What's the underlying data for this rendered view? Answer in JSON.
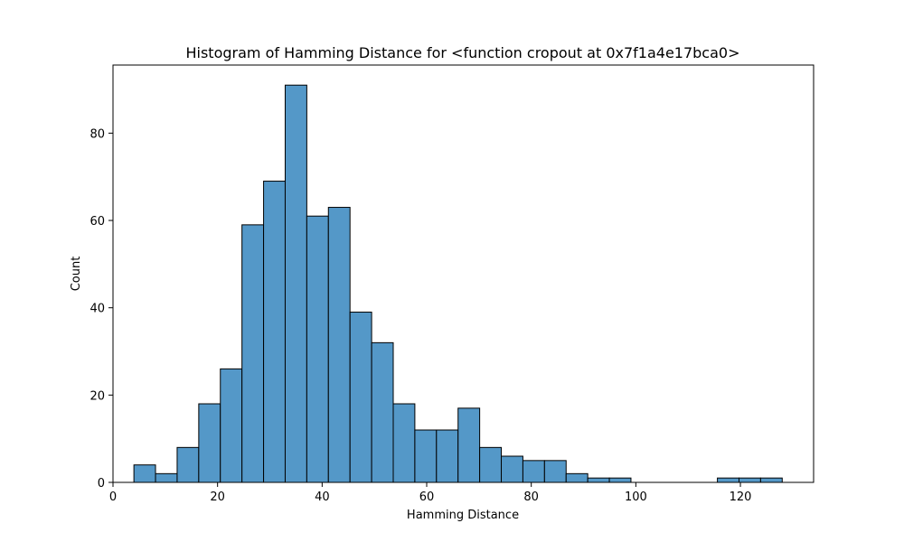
{
  "chart_data": {
    "type": "bar",
    "title": "Histogram of Hamming Distance for <function cropout at 0x7f1a4e17bca0>",
    "xlabel": "Hamming Distance",
    "ylabel": "Count",
    "xlim": [
      0,
      134
    ],
    "ylim": [
      0,
      95.6
    ],
    "xticks": [
      0,
      20,
      40,
      60,
      80,
      100,
      120
    ],
    "yticks": [
      0,
      20,
      40,
      60,
      80
    ],
    "grid": false,
    "bin_width": 4.133,
    "bins": [
      {
        "x0": 4.0,
        "x1": 8.133,
        "count": 4
      },
      {
        "x0": 8.133,
        "x1": 12.267,
        "count": 2
      },
      {
        "x0": 12.267,
        "x1": 16.4,
        "count": 8
      },
      {
        "x0": 16.4,
        "x1": 20.533,
        "count": 18
      },
      {
        "x0": 20.533,
        "x1": 24.667,
        "count": 26
      },
      {
        "x0": 24.667,
        "x1": 28.8,
        "count": 59
      },
      {
        "x0": 28.8,
        "x1": 32.933,
        "count": 69
      },
      {
        "x0": 32.933,
        "x1": 37.067,
        "count": 91
      },
      {
        "x0": 37.067,
        "x1": 41.2,
        "count": 61
      },
      {
        "x0": 41.2,
        "x1": 45.333,
        "count": 63
      },
      {
        "x0": 45.333,
        "x1": 49.467,
        "count": 39
      },
      {
        "x0": 49.467,
        "x1": 53.6,
        "count": 32
      },
      {
        "x0": 53.6,
        "x1": 57.733,
        "count": 18
      },
      {
        "x0": 57.733,
        "x1": 61.867,
        "count": 12
      },
      {
        "x0": 61.867,
        "x1": 66.0,
        "count": 12
      },
      {
        "x0": 66.0,
        "x1": 70.133,
        "count": 17
      },
      {
        "x0": 70.133,
        "x1": 74.267,
        "count": 8
      },
      {
        "x0": 74.267,
        "x1": 78.4,
        "count": 6
      },
      {
        "x0": 78.4,
        "x1": 82.533,
        "count": 5
      },
      {
        "x0": 82.533,
        "x1": 86.667,
        "count": 5
      },
      {
        "x0": 86.667,
        "x1": 90.8,
        "count": 2
      },
      {
        "x0": 90.8,
        "x1": 94.933,
        "count": 1
      },
      {
        "x0": 94.933,
        "x1": 99.067,
        "count": 1
      },
      {
        "x0": 99.067,
        "x1": 103.2,
        "count": 0
      },
      {
        "x0": 103.2,
        "x1": 107.333,
        "count": 0
      },
      {
        "x0": 107.333,
        "x1": 111.467,
        "count": 0
      },
      {
        "x0": 111.467,
        "x1": 115.6,
        "count": 0
      },
      {
        "x0": 115.6,
        "x1": 119.733,
        "count": 1
      },
      {
        "x0": 119.733,
        "x1": 123.867,
        "count": 1
      },
      {
        "x0": 123.867,
        "x1": 128.0,
        "count": 1
      }
    ],
    "colors": {
      "bar_fill": "#5498c8",
      "bar_edge": "#000000",
      "axis": "#000000"
    }
  }
}
